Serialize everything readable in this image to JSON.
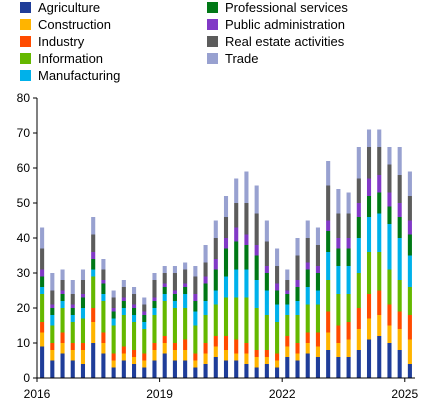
{
  "chart_data": {
    "type": "bar",
    "stacked": true,
    "title": "",
    "xlabel": "",
    "ylabel": "",
    "ylim": [
      0,
      80
    ],
    "yticks": [
      0,
      10,
      20,
      30,
      40,
      50,
      60,
      70,
      80
    ],
    "xtick_labels": [
      "2016",
      "2019",
      "2022",
      "2025"
    ],
    "grid": "none",
    "legend_position": "top",
    "series": [
      {
        "name": "Agriculture",
        "color": "#1f3d99",
        "values": [
          9,
          5,
          7,
          5,
          4,
          10,
          7,
          3,
          5,
          4,
          3,
          5,
          7,
          5,
          5,
          3,
          4,
          6,
          5,
          5,
          4,
          3,
          4,
          3,
          6,
          5,
          7,
          6,
          8,
          6,
          6,
          8,
          11,
          12,
          10,
          8,
          4
        ]
      },
      {
        "name": "Construction",
        "color": "#ffb400",
        "values": [
          4,
          3,
          3,
          3,
          4,
          6,
          3,
          2,
          2,
          2,
          2,
          3,
          3,
          3,
          3,
          2,
          3,
          3,
          3,
          2,
          3,
          3,
          2,
          2,
          3,
          2,
          3,
          3,
          5,
          4,
          5,
          6,
          6,
          6,
          5,
          6,
          7
        ]
      },
      {
        "name": "Industry",
        "color": "#ff4b00",
        "values": [
          3,
          2,
          3,
          2,
          2,
          4,
          3,
          2,
          2,
          2,
          2,
          2,
          2,
          2,
          3,
          2,
          3,
          3,
          4,
          4,
          3,
          2,
          2,
          2,
          3,
          3,
          3,
          4,
          6,
          5,
          5,
          6,
          7,
          7,
          6,
          5,
          7
        ]
      },
      {
        "name": "Information",
        "color": "#65b800",
        "values": [
          8,
          5,
          7,
          6,
          7,
          9,
          9,
          8,
          9,
          8,
          7,
          8,
          10,
          10,
          9,
          8,
          8,
          9,
          11,
          12,
          13,
          12,
          10,
          9,
          6,
          8,
          8,
          8,
          9,
          9,
          8,
          10,
          12,
          11,
          10,
          9,
          8
        ]
      },
      {
        "name": "Manufacturing",
        "color": "#00b1ea",
        "values": [
          2,
          3,
          2,
          2,
          3,
          2,
          2,
          2,
          2,
          2,
          2,
          2,
          2,
          2,
          4,
          4,
          4,
          4,
          6,
          8,
          8,
          8,
          7,
          5,
          3,
          4,
          5,
          4,
          8,
          8,
          8,
          10,
          10,
          11,
          13,
          12,
          9
        ]
      },
      {
        "name": "Professional services",
        "color": "#007816",
        "values": [
          3,
          2,
          2,
          2,
          3,
          3,
          3,
          2,
          2,
          2,
          2,
          2,
          2,
          2,
          2,
          3,
          5,
          6,
          8,
          8,
          7,
          7,
          5,
          4,
          3,
          4,
          5,
          5,
          6,
          5,
          5,
          6,
          6,
          6,
          5,
          6,
          6
        ]
      },
      {
        "name": "Public administration",
        "color": "#8139c6",
        "values": [
          2,
          1,
          1,
          1,
          1,
          2,
          1,
          1,
          1,
          1,
          1,
          1,
          1,
          1,
          1,
          2,
          2,
          3,
          3,
          4,
          3,
          3,
          2,
          2,
          1,
          2,
          2,
          2,
          3,
          3,
          3,
          4,
          5,
          5,
          4,
          4,
          4
        ]
      },
      {
        "name": "Real estate activities",
        "color": "#5c5c5c",
        "values": [
          6,
          4,
          3,
          3,
          4,
          5,
          3,
          3,
          3,
          3,
          2,
          5,
          3,
          5,
          4,
          5,
          4,
          6,
          6,
          7,
          9,
          9,
          7,
          5,
          3,
          7,
          7,
          6,
          10,
          7,
          7,
          7,
          9,
          8,
          8,
          8,
          7
        ]
      },
      {
        "name": "Trade",
        "color": "#98a1d0",
        "values": [
          6,
          5,
          3,
          4,
          3,
          5,
          3,
          2,
          2,
          2,
          2,
          2,
          2,
          2,
          2,
          3,
          5,
          5,
          6,
          7,
          9,
          8,
          6,
          5,
          3,
          5,
          5,
          5,
          7,
          7,
          6,
          9,
          5,
          5,
          5,
          8,
          7
        ]
      }
    ]
  }
}
